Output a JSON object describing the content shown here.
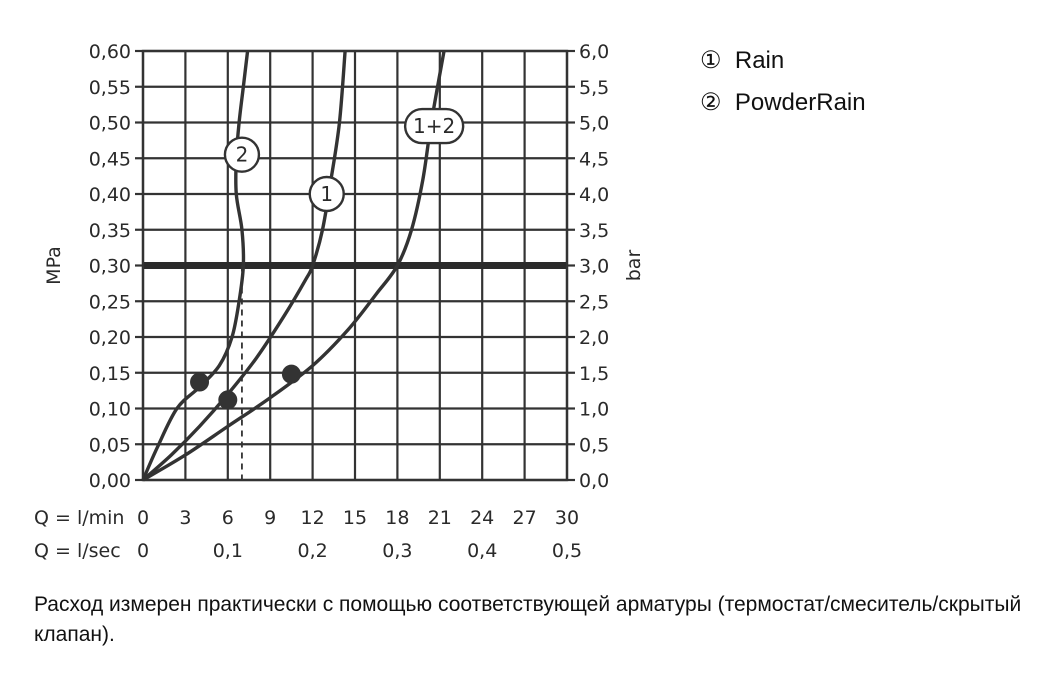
{
  "chart_data": {
    "type": "line",
    "title": "",
    "ylabel_left": "MPa",
    "ylabel_right": "bar",
    "x_rows": [
      {
        "label": "Q = l/min",
        "ticks": [
          "0",
          "3",
          "6",
          "9",
          "12",
          "15",
          "18",
          "21",
          "24",
          "27",
          "30"
        ]
      },
      {
        "label": "Q = l/sec",
        "ticks": [
          "0",
          "0,1",
          "0,2",
          "0,3",
          "0,4",
          "0,5"
        ]
      }
    ],
    "x_axis_unit": "l/min",
    "xlim": [
      0,
      30
    ],
    "ylim": [
      0,
      0.6
    ],
    "y_left_ticks": [
      "0,00",
      "0,05",
      "0,10",
      "0,15",
      "0,20",
      "0,25",
      "0,30",
      "0,35",
      "0,40",
      "0,45",
      "0,50",
      "0,55",
      "0,60"
    ],
    "y_right_ticks": [
      "0,0",
      "0,5",
      "1,0",
      "1,5",
      "2,0",
      "2,5",
      "3,0",
      "3,5",
      "4,0",
      "4,5",
      "5,0",
      "5,5",
      "6,0"
    ],
    "grid": true,
    "series": [
      {
        "name": "1",
        "x": [
          0,
          2,
          4,
          6,
          8,
          10,
          11.5,
          12,
          12.7,
          13.3,
          13.9,
          14.3
        ],
        "y": [
          0,
          0.035,
          0.075,
          0.12,
          0.17,
          0.23,
          0.28,
          0.3,
          0.35,
          0.42,
          0.5,
          0.6
        ]
      },
      {
        "name": "2",
        "x": [
          0,
          1,
          2.4,
          4,
          5.4,
          6.3,
          6.8,
          7.1,
          7.0,
          6.6,
          6.6,
          6.8,
          7.1,
          7.4
        ],
        "y": [
          0,
          0.045,
          0.1,
          0.13,
          0.16,
          0.2,
          0.25,
          0.3,
          0.35,
          0.4,
          0.45,
          0.5,
          0.55,
          0.6
        ]
      },
      {
        "name": "1+2",
        "x": [
          0,
          3,
          6,
          9,
          12,
          14.5,
          16.5,
          18,
          19,
          19.8,
          20.4,
          21.3
        ],
        "y": [
          0,
          0.035,
          0.075,
          0.115,
          0.16,
          0.21,
          0.26,
          0.3,
          0.35,
          0.42,
          0.5,
          0.6
        ]
      }
    ],
    "curve_labels": [
      {
        "text": "2",
        "x": 7.0,
        "y": 0.455
      },
      {
        "text": "1",
        "x": 13.0,
        "y": 0.4
      },
      {
        "text": "1+2",
        "x": 20.6,
        "y": 0.495
      }
    ],
    "markers": [
      {
        "x": 4.0,
        "y": 0.137
      },
      {
        "x": 6.0,
        "y": 0.112
      },
      {
        "x": 10.5,
        "y": 0.148
      }
    ],
    "reference_line": {
      "y": 0.3
    },
    "dashed_drops": [
      7.0,
      12.0,
      18.0
    ]
  },
  "legend": {
    "items": [
      {
        "symbol": "①",
        "label": "Rain"
      },
      {
        "symbol": "②",
        "label": "PowderRain"
      }
    ]
  },
  "caption": "Расход измерен практически с помощью соответствующей арматуры (термостат/смеситель/скрытый клапан)."
}
